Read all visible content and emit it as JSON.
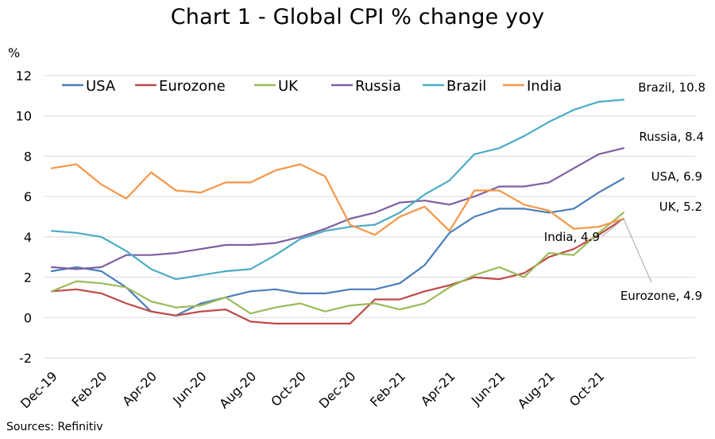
{
  "chart_data": {
    "type": "line",
    "title": "Chart 1 - Global CPI % change yoy",
    "ylabel": "%",
    "xlabel": "",
    "source": "Sources: Refinitiv",
    "ylim": [
      -2,
      12
    ],
    "yticks": [
      -2,
      0,
      2,
      4,
      6,
      8,
      10,
      12
    ],
    "grid": "horizontal",
    "legend_position": "top-left",
    "x": [
      "Dec-19",
      "Jan-20",
      "Feb-20",
      "Mar-20",
      "Apr-20",
      "May-20",
      "Jun-20",
      "Jul-20",
      "Aug-20",
      "Sep-20",
      "Oct-20",
      "Nov-20",
      "Dec-20",
      "Jan-21",
      "Feb-21",
      "Mar-21",
      "Apr-21",
      "May-21",
      "Jun-21",
      "Jul-21",
      "Aug-21",
      "Sep-21",
      "Oct-21",
      "Nov-21"
    ],
    "x_tick_labels": [
      "Dec-19",
      "Feb-20",
      "Apr-20",
      "Jun-20",
      "Aug-20",
      "Oct-20",
      "Dec-20",
      "Feb-21",
      "Apr-21",
      "Jun-21",
      "Aug-21",
      "Oct-21"
    ],
    "series": [
      {
        "name": "USA",
        "color": "#4a7ebb",
        "values": [
          2.3,
          2.5,
          2.3,
          1.5,
          0.3,
          0.1,
          0.7,
          1.0,
          1.3,
          1.4,
          1.2,
          1.2,
          1.4,
          1.4,
          1.7,
          2.6,
          4.2,
          5.0,
          5.4,
          5.4,
          5.2,
          5.4,
          6.2,
          6.9
        ]
      },
      {
        "name": "Eurozone",
        "color": "#be4b48",
        "values": [
          1.3,
          1.4,
          1.2,
          0.7,
          0.3,
          0.1,
          0.3,
          0.4,
          -0.2,
          -0.3,
          -0.3,
          -0.3,
          -0.3,
          0.9,
          0.9,
          1.3,
          1.6,
          2.0,
          1.9,
          2.2,
          3.0,
          3.4,
          4.1,
          4.9
        ]
      },
      {
        "name": "UK",
        "color": "#9bbb59",
        "values": [
          1.3,
          1.8,
          1.7,
          1.5,
          0.8,
          0.5,
          0.6,
          1.0,
          0.2,
          0.5,
          0.7,
          0.3,
          0.6,
          0.7,
          0.4,
          0.7,
          1.5,
          2.1,
          2.5,
          2.0,
          3.2,
          3.1,
          4.2,
          5.2
        ]
      },
      {
        "name": "Russia",
        "color": "#7d60a0",
        "values": [
          2.5,
          2.4,
          2.5,
          3.1,
          3.1,
          3.2,
          3.4,
          3.6,
          3.6,
          3.7,
          4.0,
          4.4,
          4.9,
          5.2,
          5.7,
          5.8,
          5.6,
          6.0,
          6.5,
          6.5,
          6.7,
          7.4,
          8.1,
          8.4
        ]
      },
      {
        "name": "Brazil",
        "color": "#4bacc6",
        "values": [
          4.3,
          4.2,
          4.0,
          3.3,
          2.4,
          1.9,
          2.1,
          2.3,
          2.4,
          3.1,
          3.9,
          4.3,
          4.5,
          4.6,
          5.2,
          6.1,
          6.8,
          8.1,
          8.4,
          9.0,
          9.7,
          10.3,
          10.7,
          10.8
        ]
      },
      {
        "name": "India",
        "color": "#f79646",
        "values": [
          7.4,
          7.6,
          6.6,
          5.9,
          7.2,
          6.3,
          6.2,
          6.7,
          6.7,
          7.3,
          7.6,
          7.0,
          4.6,
          4.1,
          5.0,
          5.5,
          4.3,
          6.3,
          6.3,
          5.6,
          5.3,
          4.4,
          4.5,
          4.9
        ]
      }
    ],
    "annotations": [
      {
        "series": "Brazil",
        "text": "Brazil, 10.8"
      },
      {
        "series": "Russia",
        "text": "Russia, 8.4"
      },
      {
        "series": "USA",
        "text": "USA, 6.9"
      },
      {
        "series": "UK",
        "text": "UK, 5.2"
      },
      {
        "series": "India",
        "text": "India, 4.9"
      },
      {
        "series": "Eurozone",
        "text": "Eurozone, 4.9"
      }
    ]
  }
}
